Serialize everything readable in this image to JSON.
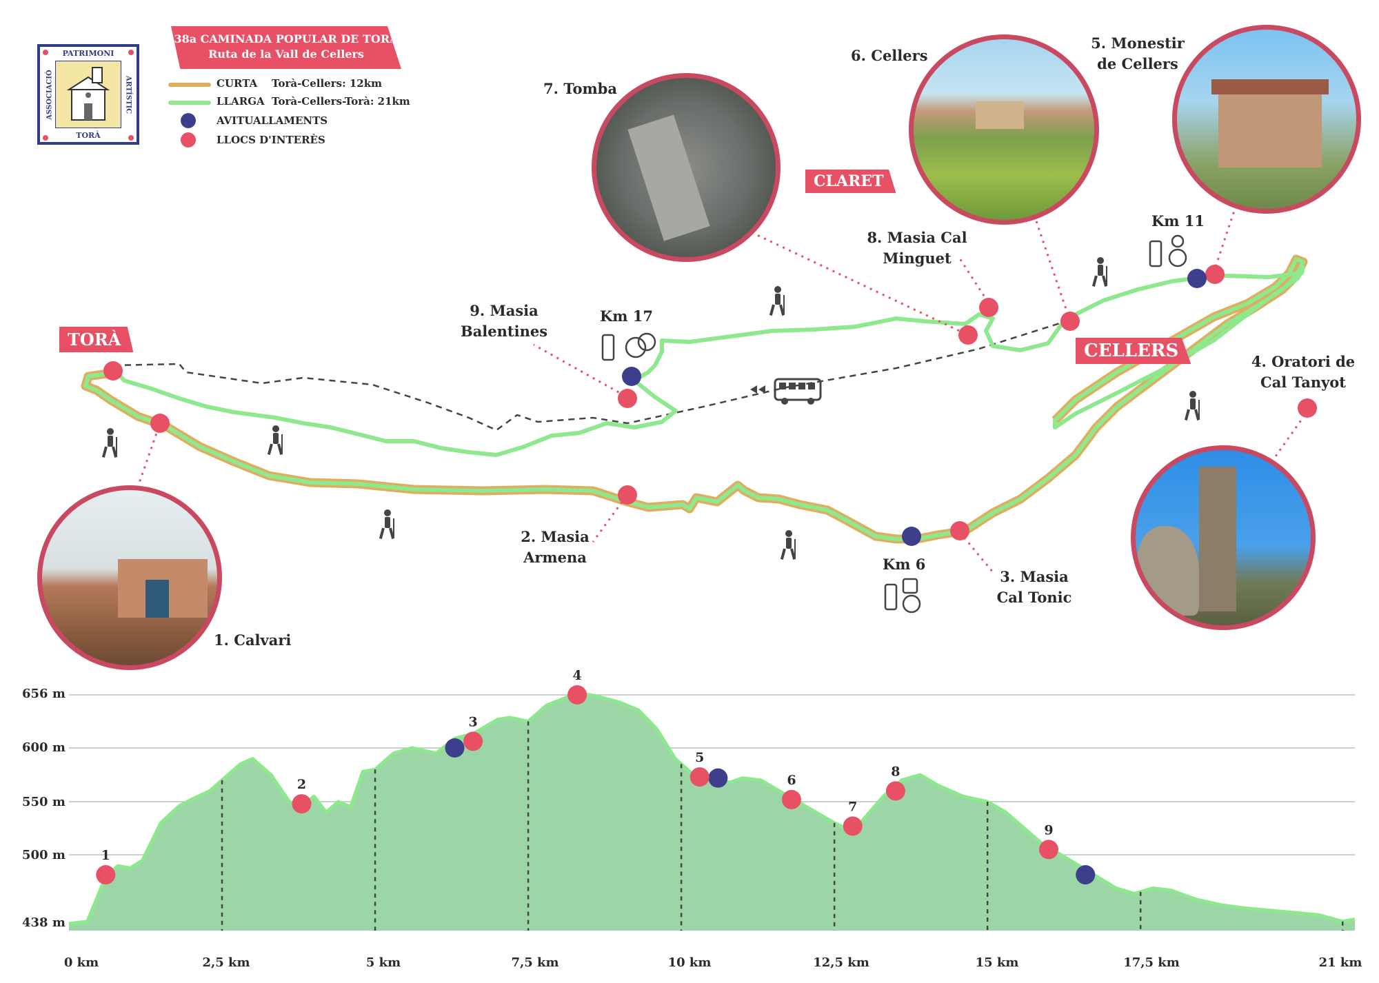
{
  "logo": {
    "top": "PATRIMONI",
    "left": "ASSOCIACIÓ",
    "right": "ARTÍSTIC",
    "bottom": "TORÀ"
  },
  "title": {
    "line1": "38a CAMINADA POPULAR DE TORÀ",
    "line2": "Ruta de la Vall de Cellers"
  },
  "legend": {
    "short": {
      "name": "CURTA",
      "desc": "Torà-Cellers: 12km",
      "color": "#deae5e"
    },
    "long": {
      "name": "LLARGA",
      "desc": "Torà-Cellers-Torà: 21km",
      "color": "#8ee88e"
    },
    "aid": {
      "name": "AVITUALLAMENTS",
      "color": "#3d3f8c"
    },
    "poi": {
      "name": "LLOCS D'INTERÈS",
      "color": "#e85066"
    }
  },
  "places": {
    "tora": "TORÀ",
    "cellers": "CELLERS",
    "claret": "CLARET"
  },
  "pois": [
    {
      "label": "1. Calvari"
    },
    {
      "label1": "2. Masia",
      "label2": "Armena"
    },
    {
      "label1": "3. Masia",
      "label2": "Cal Tonic"
    },
    {
      "label1": "4. Oratori de",
      "label2": "Cal Tanyot"
    },
    {
      "label1": "5. Monestir",
      "label2": "de Cellers"
    },
    {
      "label": "6. Cellers"
    },
    {
      "label": "7. Tomba"
    },
    {
      "label1": "8. Masia Cal",
      "label2": "Minguet"
    },
    {
      "label1": "9. Masia",
      "label2": "Balentines"
    }
  ],
  "aid_stations": [
    {
      "label": "Km 6"
    },
    {
      "label": "Km 11"
    },
    {
      "label": "Km 17"
    }
  ],
  "profile": {
    "y_ticks": [
      "656 m",
      "600 m",
      "550 m",
      "500 m",
      "438 m"
    ],
    "x_ticks": [
      "0 km",
      "2,5 km",
      "5 km",
      "7,5 km",
      "10 km",
      "12,5 km",
      "15 km",
      "17,5 km",
      "21 km"
    ],
    "poi_numbers": [
      "1",
      "2",
      "3",
      "4",
      "5",
      "6",
      "7",
      "8",
      "9"
    ],
    "elevation_km": [
      0,
      0.3,
      0.6,
      0.8,
      1.0,
      1.2,
      1.5,
      1.8,
      2.0,
      2.3,
      2.5,
      2.8,
      3.0,
      3.3,
      3.6,
      3.8,
      4.0,
      4.2,
      4.4,
      4.6,
      4.8,
      5.0,
      5.3,
      5.6,
      6.0,
      6.3,
      6.6,
      7.0,
      7.2,
      7.5,
      7.8,
      8.0,
      8.3,
      8.6,
      9.0,
      9.3,
      9.6,
      9.9,
      10.2,
      10.5,
      10.8,
      11.0,
      11.3,
      11.6,
      11.9,
      12.2,
      12.5,
      12.8,
      13.0,
      13.3,
      13.6,
      13.9,
      14.2,
      14.6,
      15.0,
      15.3,
      15.6,
      15.9,
      16.2,
      16.5,
      16.8,
      17.1,
      17.4,
      17.7,
      18.0,
      18.4,
      18.8,
      19.2,
      19.6,
      20.0,
      20.4,
      20.8,
      21.0
    ],
    "elevation_m": [
      438,
      440,
      480,
      490,
      488,
      495,
      530,
      546,
      552,
      560,
      570,
      585,
      590,
      575,
      550,
      545,
      555,
      540,
      550,
      545,
      578,
      580,
      595,
      600,
      595,
      610,
      615,
      630,
      632,
      628,
      645,
      650,
      658,
      655,
      648,
      640,
      620,
      590,
      575,
      570,
      568,
      572,
      570,
      560,
      550,
      540,
      530,
      522,
      535,
      555,
      570,
      575,
      565,
      555,
      550,
      540,
      525,
      510,
      500,
      490,
      480,
      470,
      465,
      470,
      468,
      460,
      455,
      452,
      450,
      448,
      446,
      440,
      442
    ],
    "poi_km": [
      0.6,
      3.8,
      6.6,
      8.3,
      10.3,
      11.8,
      12.8,
      13.5,
      16.0
    ],
    "poi_m": [
      482,
      548,
      607,
      656,
      573,
      552,
      527,
      560,
      505
    ],
    "aid_km": [
      6.3,
      10.6,
      16.6
    ],
    "aid_m": [
      600,
      572,
      482
    ],
    "fill_color": "#9dd6a6",
    "line_color": "#8ee88e"
  }
}
